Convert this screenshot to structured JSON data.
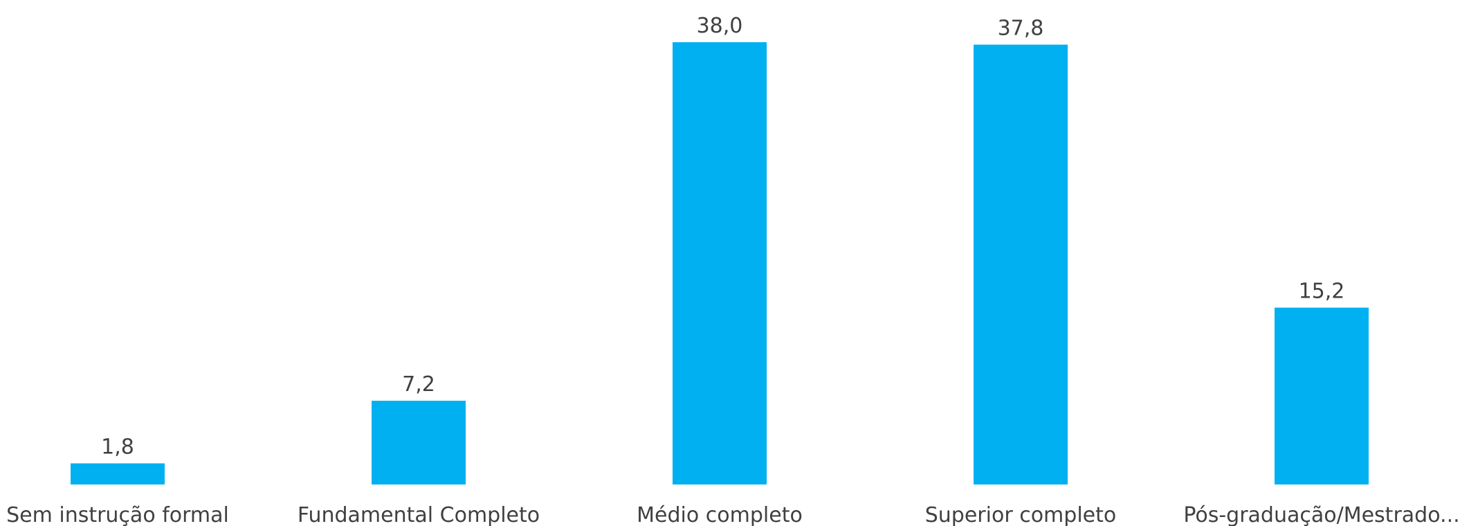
{
  "chart_data": {
    "type": "bar",
    "categories": [
      "Sem instrução formal",
      "Fundamental Completo",
      "Médio completo",
      "Superior completo",
      "Pós-graduação/Mestrado..."
    ],
    "values": [
      1.8,
      7.2,
      38.0,
      37.8,
      15.2
    ],
    "value_labels": [
      "1,8",
      "7,2",
      "38,0",
      "37,8",
      "15,2"
    ],
    "title": "",
    "xlabel": "",
    "ylabel": "",
    "ylim": [
      0,
      38
    ],
    "grid": false,
    "legend": "none",
    "bar_color": "#00B0F0",
    "text_color": "#404040"
  }
}
